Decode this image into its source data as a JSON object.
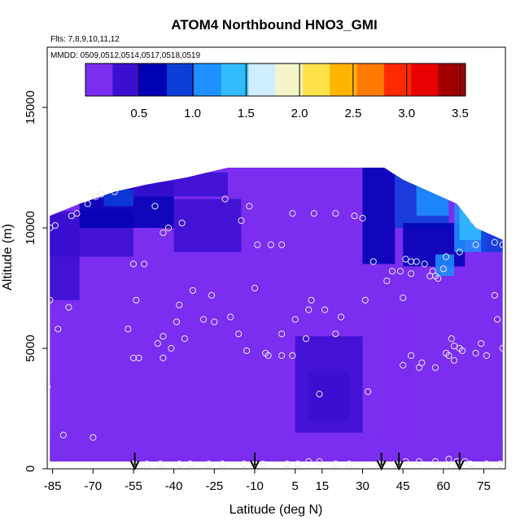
{
  "chart_data": {
    "type": "heatmap",
    "title": "ATOM4 Northbound HNO3_GMI",
    "flights_note": "Flts: 7,8,9,10,11,12",
    "dates_note": "MMDD: 0509,0512,0514,0517,0518,0519",
    "xlabel": "Latitude (deg N)",
    "ylabel": "Altitude (m)",
    "xlim": [
      -87,
      83
    ],
    "ylim": [
      0,
      17500
    ],
    "x_ticks": [
      -85,
      -70,
      -55,
      -40,
      -25,
      -10,
      5,
      15,
      30,
      45,
      60,
      75
    ],
    "x_tick_labels": [
      "-85",
      "-70",
      "-55",
      "-40",
      "-25",
      "-10",
      "5",
      "15",
      "30",
      "45",
      "60",
      "75"
    ],
    "y_ticks": [
      0,
      5000,
      10000,
      15000
    ],
    "y_tick_labels": [
      "0",
      "5000",
      "10000",
      "15000"
    ],
    "colorbar": {
      "min": 0.0,
      "max": 3.55,
      "ticks": [
        0.5,
        1.0,
        1.5,
        2.0,
        2.5,
        3.0,
        3.5
      ],
      "tick_labels": [
        "0.5",
        "1.0",
        "1.5",
        "2.0",
        "2.5",
        "3.0",
        "3.5"
      ],
      "colors": [
        "#7b2df0",
        "#3a0fd0",
        "#0000b4",
        "#0a3fd8",
        "#1e90ff",
        "#33bbff",
        "#cfeeff",
        "#f4f4c8",
        "#ffe14a",
        "#ffb400",
        "#ff7a00",
        "#ff2a00",
        "#e80000",
        "#a00000"
      ]
    },
    "curtain_bottom_m": 300,
    "curtain_top_profile": [
      {
        "lat": -86,
        "alt": 10500
      },
      {
        "lat": -75,
        "alt": 11000
      },
      {
        "lat": -62,
        "alt": 11500
      },
      {
        "lat": -50,
        "alt": 11800
      },
      {
        "lat": -35,
        "alt": 12100
      },
      {
        "lat": -20,
        "alt": 12500
      },
      {
        "lat": 0,
        "alt": 12500
      },
      {
        "lat": 20,
        "alt": 12500
      },
      {
        "lat": 38,
        "alt": 12500
      },
      {
        "lat": 45,
        "alt": 12000
      },
      {
        "lat": 55,
        "alt": 11500
      },
      {
        "lat": 65,
        "alt": 11000
      },
      {
        "lat": 72,
        "alt": 10000
      },
      {
        "lat": 82,
        "alt": 9500
      }
    ],
    "sample_points": [
      {
        "lat": -86,
        "alt": 10000
      },
      {
        "lat": -84,
        "alt": 10100
      },
      {
        "lat": -78,
        "alt": 10500
      },
      {
        "lat": -76,
        "alt": 10600
      },
      {
        "lat": -72,
        "alt": 11000
      },
      {
        "lat": -69,
        "alt": 11300
      },
      {
        "lat": -67,
        "alt": 11400
      },
      {
        "lat": -62,
        "alt": 11500
      },
      {
        "lat": -47,
        "alt": 10900
      },
      {
        "lat": -42,
        "alt": 10000
      },
      {
        "lat": -44,
        "alt": 9800
      },
      {
        "lat": -37,
        "alt": 10200
      },
      {
        "lat": -21,
        "alt": 11200
      },
      {
        "lat": -12,
        "alt": 10900
      },
      {
        "lat": -15,
        "alt": 10300
      },
      {
        "lat": -9,
        "alt": 9300
      },
      {
        "lat": -4,
        "alt": 9300
      },
      {
        "lat": 0,
        "alt": 9300
      },
      {
        "lat": 4,
        "alt": 10600
      },
      {
        "lat": 12,
        "alt": 10600
      },
      {
        "lat": 20,
        "alt": 10600
      },
      {
        "lat": 27,
        "alt": 10500
      },
      {
        "lat": 30,
        "alt": 10400
      },
      {
        "lat": -55,
        "alt": 8500
      },
      {
        "lat": -51,
        "alt": 8500
      },
      {
        "lat": -86,
        "alt": 7000
      },
      {
        "lat": -79,
        "alt": 6700
      },
      {
        "lat": -54,
        "alt": 7000
      },
      {
        "lat": -38,
        "alt": 6800
      },
      {
        "lat": -33,
        "alt": 7400
      },
      {
        "lat": -26,
        "alt": 7200
      },
      {
        "lat": -10,
        "alt": 7500
      },
      {
        "lat": 11,
        "alt": 7000
      },
      {
        "lat": 16,
        "alt": 6600
      },
      {
        "lat": 10,
        "alt": 6600
      },
      {
        "lat": 31,
        "alt": 7000
      },
      {
        "lat": 34,
        "alt": 8600
      },
      {
        "lat": 41,
        "alt": 8200
      },
      {
        "lat": 44,
        "alt": 8200
      },
      {
        "lat": 39,
        "alt": 7800
      },
      {
        "lat": 45,
        "alt": 7100
      },
      {
        "lat": 46,
        "alt": 8700
      },
      {
        "lat": 48,
        "alt": 8600
      },
      {
        "lat": 50,
        "alt": 8600
      },
      {
        "lat": 53,
        "alt": 8500
      },
      {
        "lat": 48,
        "alt": 8100
      },
      {
        "lat": 55,
        "alt": 8000
      },
      {
        "lat": 57,
        "alt": 8000
      },
      {
        "lat": 58,
        "alt": 7900
      },
      {
        "lat": 56,
        "alt": 8200
      },
      {
        "lat": 60,
        "alt": 8300
      },
      {
        "lat": 61,
        "alt": 8800
      },
      {
        "lat": 66,
        "alt": 9000
      },
      {
        "lat": 72,
        "alt": 9300
      },
      {
        "lat": 79,
        "alt": 9400
      },
      {
        "lat": 82,
        "alt": 9300
      },
      {
        "lat": 79,
        "alt": 7200
      },
      {
        "lat": -83,
        "alt": 5800
      },
      {
        "lat": -57,
        "alt": 5800
      },
      {
        "lat": -44,
        "alt": 5500
      },
      {
        "lat": -46,
        "alt": 5200
      },
      {
        "lat": -39,
        "alt": 6100
      },
      {
        "lat": -36,
        "alt": 5400
      },
      {
        "lat": -29,
        "alt": 6200
      },
      {
        "lat": -25,
        "alt": 6100
      },
      {
        "lat": -19,
        "alt": 6300
      },
      {
        "lat": -16,
        "alt": 5600
      },
      {
        "lat": -13,
        "alt": 4900
      },
      {
        "lat": -6,
        "alt": 4800
      },
      {
        "lat": -5,
        "alt": 4700
      },
      {
        "lat": 0,
        "alt": 4700
      },
      {
        "lat": 0,
        "alt": 5600
      },
      {
        "lat": 4,
        "alt": 4700
      },
      {
        "lat": 5,
        "alt": 6200
      },
      {
        "lat": 9,
        "alt": 5400
      },
      {
        "lat": 20,
        "alt": 5600
      },
      {
        "lat": 22,
        "alt": 6300
      },
      {
        "lat": -55,
        "alt": 4600
      },
      {
        "lat": -53,
        "alt": 4600
      },
      {
        "lat": -41,
        "alt": 5000
      },
      {
        "lat": -44,
        "alt": 4600
      },
      {
        "lat": 45,
        "alt": 4300
      },
      {
        "lat": 48,
        "alt": 4700
      },
      {
        "lat": 51,
        "alt": 4200
      },
      {
        "lat": 52,
        "alt": 4400
      },
      {
        "lat": 61,
        "alt": 4800
      },
      {
        "lat": 62,
        "alt": 4700
      },
      {
        "lat": 64,
        "alt": 4500
      },
      {
        "lat": 66,
        "alt": 5000
      },
      {
        "lat": 67,
        "alt": 4900
      },
      {
        "lat": 72,
        "alt": 4800
      },
      {
        "lat": 76,
        "alt": 4700
      },
      {
        "lat": 74,
        "alt": 5200
      },
      {
        "lat": 80,
        "alt": 6200
      },
      {
        "lat": 82,
        "alt": 5000
      },
      {
        "lat": 57,
        "alt": 4200
      },
      {
        "lat": 63,
        "alt": 5400
      },
      {
        "lat": 64,
        "alt": 5100
      },
      {
        "lat": 14,
        "alt": 3100
      },
      {
        "lat": 32,
        "alt": 3200
      },
      {
        "lat": -87,
        "alt": 3400
      },
      {
        "lat": -81,
        "alt": 1400
      },
      {
        "lat": -70,
        "alt": 1300
      },
      {
        "lat": -55,
        "alt": 200
      },
      {
        "lat": -50,
        "alt": 200
      },
      {
        "lat": -45,
        "alt": 200
      },
      {
        "lat": -38,
        "alt": 200
      },
      {
        "lat": -34,
        "alt": 200
      },
      {
        "lat": -27,
        "alt": 200
      },
      {
        "lat": -22,
        "alt": 200
      },
      {
        "lat": -14,
        "alt": 200
      },
      {
        "lat": -7,
        "alt": 200
      },
      {
        "lat": 2,
        "alt": 200
      },
      {
        "lat": 6,
        "alt": 200
      },
      {
        "lat": 10,
        "alt": 300
      },
      {
        "lat": 14,
        "alt": 300
      },
      {
        "lat": 20,
        "alt": 200
      },
      {
        "lat": 25,
        "alt": 200
      },
      {
        "lat": 36,
        "alt": 200
      },
      {
        "lat": 42,
        "alt": 200
      },
      {
        "lat": 46,
        "alt": 300
      },
      {
        "lat": 51,
        "alt": 300
      },
      {
        "lat": 57,
        "alt": 300
      },
      {
        "lat": 62,
        "alt": 400
      },
      {
        "lat": 63,
        "alt": 100
      },
      {
        "lat": 65,
        "alt": 300
      },
      {
        "lat": 68,
        "alt": 300
      },
      {
        "lat": 70,
        "alt": 200
      },
      {
        "lat": 76,
        "alt": 200
      },
      {
        "lat": 81,
        "alt": 200
      }
    ],
    "arrows_lat": [
      -54.5,
      -10,
      37,
      43.5,
      66
    ],
    "region_field": [
      {
        "lat0": -87,
        "lat1": 83,
        "alt0": 300,
        "alt1": 12500,
        "v": 0.12
      },
      {
        "lat0": -87,
        "lat1": -75,
        "alt0": 7000,
        "alt1": 10600,
        "v": 0.38
      },
      {
        "lat0": -87,
        "lat1": -55,
        "alt0": 8800,
        "alt1": 10700,
        "v": 0.5
      },
      {
        "lat0": -75,
        "lat1": -40,
        "alt0": 10000,
        "alt1": 11900,
        "v": 0.62
      },
      {
        "lat0": -66,
        "lat1": -55,
        "alt0": 10900,
        "alt1": 11600,
        "v": 1.0
      },
      {
        "lat0": -55,
        "lat1": -20,
        "alt0": 11300,
        "alt1": 12300,
        "v": 0.45
      },
      {
        "lat0": -40,
        "lat1": -15,
        "alt0": 9000,
        "alt1": 11200,
        "v": 0.3
      },
      {
        "lat0": 30,
        "lat1": 42,
        "alt0": 8500,
        "alt1": 12500,
        "v": 0.55
      },
      {
        "lat0": 42,
        "lat1": 62,
        "alt0": 10000,
        "alt1": 12200,
        "v": 0.95
      },
      {
        "lat0": 50,
        "lat1": 62,
        "alt0": 10500,
        "alt1": 11800,
        "v": 1.15
      },
      {
        "lat0": 45,
        "lat1": 68,
        "alt0": 8400,
        "alt1": 10200,
        "v": 0.6
      },
      {
        "lat0": 57,
        "lat1": 64,
        "alt0": 8000,
        "alt1": 8900,
        "v": 1.25
      },
      {
        "lat0": 64,
        "lat1": 76,
        "alt0": 9000,
        "alt1": 11000,
        "v": 1.1
      },
      {
        "lat0": 66,
        "lat1": 74,
        "alt0": 9500,
        "alt1": 11200,
        "v": 1.5
      },
      {
        "lat0": 70,
        "lat1": 73,
        "alt0": 10200,
        "alt1": 11300,
        "v": 2.05
      },
      {
        "lat0": 74,
        "lat1": 83,
        "alt0": 9000,
        "alt1": 10500,
        "v": 0.8
      },
      {
        "lat0": 5,
        "lat1": 30,
        "alt0": 1500,
        "alt1": 5500,
        "v": 0.28
      },
      {
        "lat0": 10,
        "lat1": 25,
        "alt0": 2000,
        "alt1": 4000,
        "v": 0.36
      },
      {
        "lat0": 38,
        "lat1": 48,
        "alt0": 1000,
        "alt1": 6500,
        "v": 0.25
      },
      {
        "lat0": -87,
        "lat1": 83,
        "alt0": 300,
        "alt1": 1200,
        "v": 0.05
      }
    ]
  }
}
